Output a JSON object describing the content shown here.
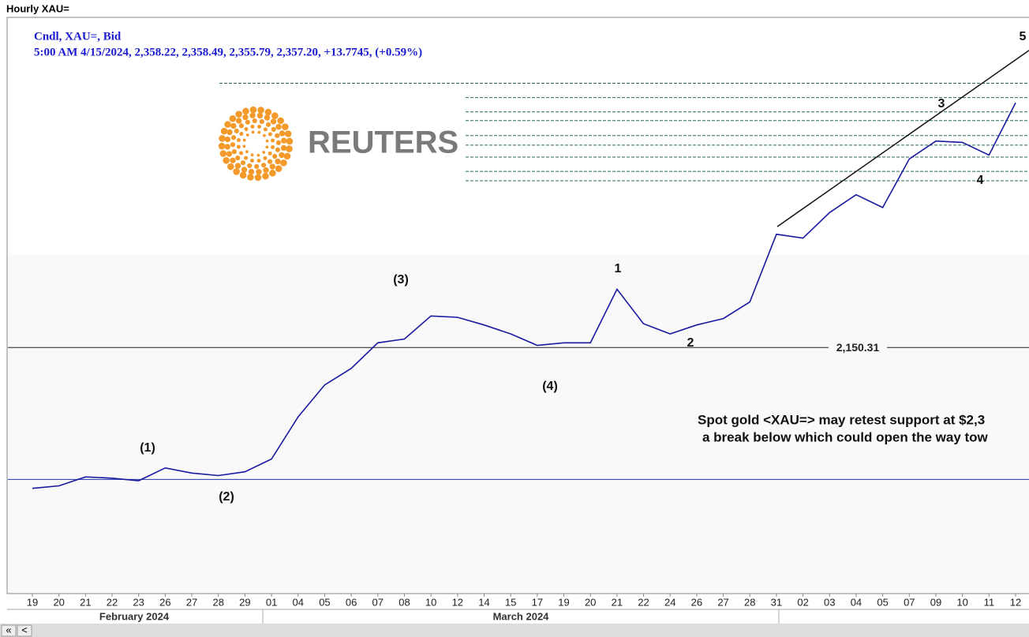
{
  "header": {
    "title": "Hourly XAU=",
    "legend_line1": "Cndl, XAU=, Bid",
    "legend_line2": "5:00 AM 4/15/2024, 2,358.22, 2,358.49, 2,355.79, 2,357.20, +13.7745, (+0.59%)",
    "logo_text": "REUTERS"
  },
  "chart_data": {
    "type": "line",
    "color": "#1a1aa0",
    "categories": [
      "19",
      "20",
      "21",
      "22",
      "23",
      "26",
      "27",
      "28",
      "29",
      "01",
      "04",
      "05",
      "06",
      "07",
      "08",
      "10",
      "12",
      "14",
      "15",
      "17",
      "19",
      "20",
      "21",
      "22",
      "24",
      "26",
      "27",
      "28",
      "31",
      "02",
      "03",
      "04",
      "05",
      "07",
      "09",
      "10",
      "11",
      "12"
    ],
    "values": [
      2040,
      2042,
      2049,
      2048,
      2046,
      2056,
      2052,
      2050,
      2053,
      2063,
      2096,
      2121,
      2134,
      2154,
      2157,
      2175,
      2174,
      2168,
      2161,
      2152,
      2154,
      2154,
      2196,
      2169,
      2161,
      2168,
      2173,
      2186,
      2239,
      2236,
      2256,
      2270,
      2260,
      2298,
      2312,
      2311,
      2301,
      2342
    ],
    "ylim": [
      1957.6,
      2408.9
    ],
    "months": [
      "February 2024",
      "March 2024"
    ],
    "reference_lines": [
      {
        "value": 2150.31,
        "label": "2,150.31"
      },
      {
        "value": 2047
      }
    ],
    "levels": [
      2357.3,
      2346.1,
      2334.9,
      2328.1,
      2316.3,
      2308.8,
      2299.5,
      2288.3,
      2280.9
    ],
    "trendline": [
      2245,
      2383
    ],
    "wave_labels": [
      "(1)",
      "(2)",
      "(3)",
      "(4)",
      "1",
      "2",
      "3",
      "4",
      "5"
    ],
    "annotation": [
      "Spot gold <XAU=> may retest support at $2,3",
      "a break below which could open the way tow"
    ]
  },
  "scrollbar": [
    "«",
    "<"
  ]
}
